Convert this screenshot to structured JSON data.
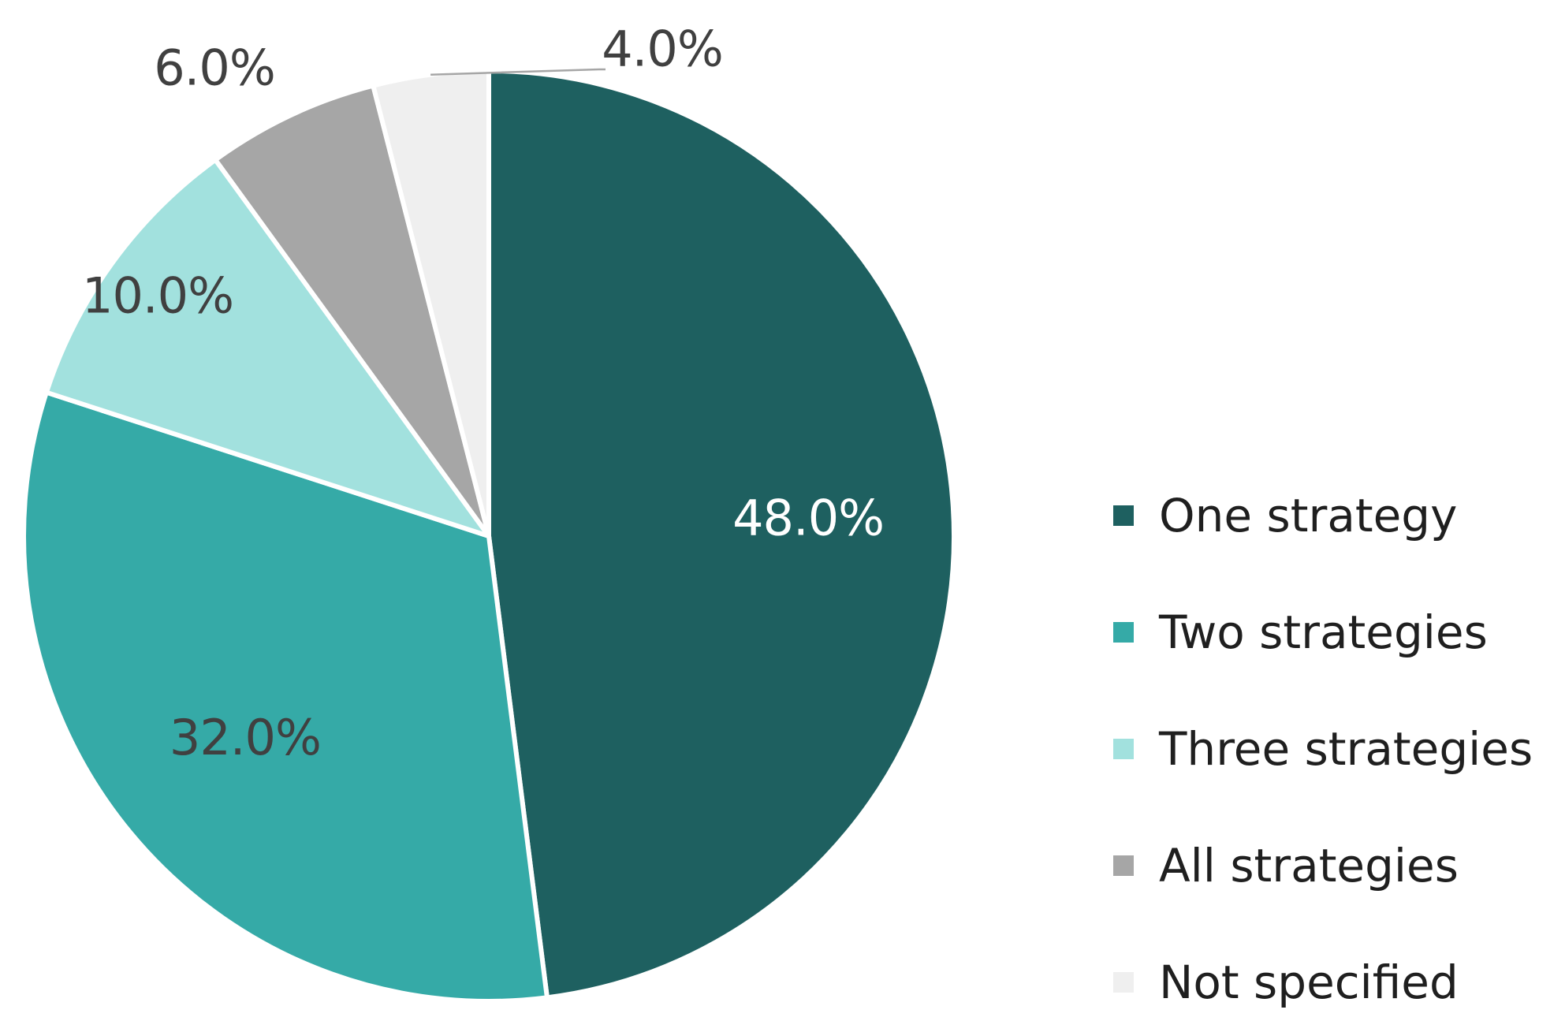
{
  "chart_data": {
    "type": "pie",
    "categories": [
      "One strategy",
      "Two strategies",
      "Three strategies",
      "All strategies",
      "Not specified"
    ],
    "values": [
      48.0,
      32.0,
      10.0,
      6.0,
      4.0
    ],
    "data_labels": [
      "48.0%",
      "32.0%",
      "10.0%",
      "6.0%",
      "4.0%"
    ],
    "colors": [
      "#1e6060",
      "#35aaa7",
      "#a2e1de",
      "#a6a6a6",
      "#efefef"
    ],
    "label_colors": [
      "#ffffff",
      "#404040",
      "#404040",
      "#404040",
      "#404040"
    ],
    "start_angle": "12 o'clock",
    "direction": "clockwise",
    "legend": "right"
  }
}
